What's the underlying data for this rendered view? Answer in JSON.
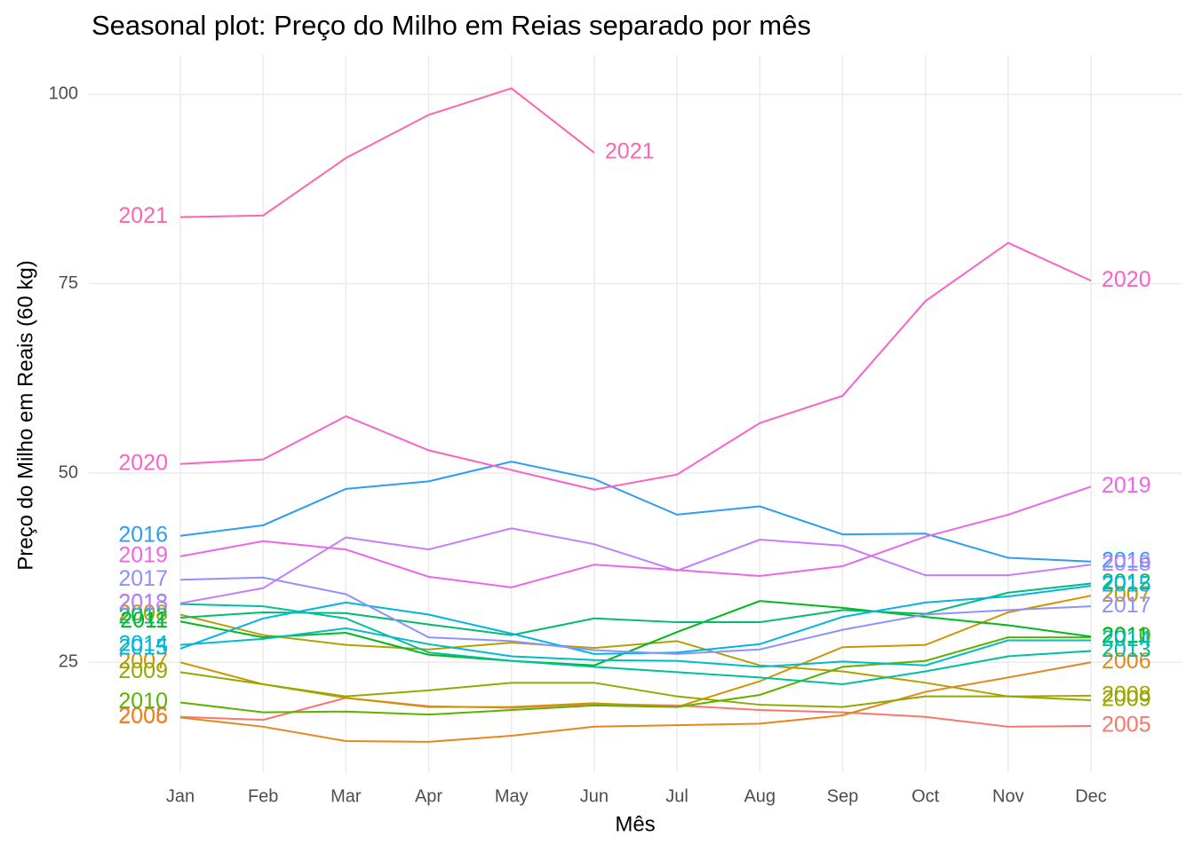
{
  "chart_data": {
    "type": "line",
    "title": "Seasonal plot: Preço do Milho em Reias separado por mês",
    "x_label": "Mês",
    "y_label": "Preço do Milho em Reais (60 kg)",
    "categories": [
      "Jan",
      "Feb",
      "Mar",
      "Apr",
      "May",
      "Jun",
      "Jul",
      "Aug",
      "Sep",
      "Oct",
      "Nov",
      "Dec"
    ],
    "ylim": [
      10.5,
      105.2
    ],
    "yticks": [
      25,
      50,
      75,
      100
    ],
    "grid": true,
    "series": [
      {
        "name": "2005",
        "color": "#F8766D",
        "values": [
          17.8,
          17.4,
          20.3,
          19.2,
          19.0,
          19.5,
          19.3,
          18.7,
          18.4,
          17.8,
          16.5,
          16.6
        ]
      },
      {
        "name": "2006",
        "color": "#E7861B",
        "values": [
          17.7,
          16.5,
          14.6,
          14.5,
          15.3,
          16.5,
          16.7,
          16.9,
          18.0,
          21.1,
          23.0,
          25.0
        ]
      },
      {
        "name": "2007",
        "color": "#D09400",
        "values": [
          25.0,
          22.1,
          20.3,
          19.1,
          19.1,
          19.6,
          19.1,
          22.5,
          27.0,
          27.3,
          31.6,
          33.8
        ]
      },
      {
        "name": "2008",
        "color": "#B2A000",
        "values": [
          31.3,
          28.6,
          27.3,
          26.7,
          27.6,
          26.9,
          27.8,
          24.6,
          23.8,
          22.3,
          20.5,
          20.6
        ]
      },
      {
        "name": "2009",
        "color": "#8FAA00",
        "values": [
          23.7,
          22.1,
          20.5,
          21.3,
          22.3,
          22.3,
          20.5,
          19.4,
          19.1,
          20.5,
          20.5,
          20.0
        ]
      },
      {
        "name": "2010",
        "color": "#5BB300",
        "values": [
          19.7,
          18.4,
          18.5,
          18.1,
          18.7,
          19.3,
          19.1,
          20.7,
          24.4,
          25.2,
          28.3,
          28.3
        ]
      },
      {
        "name": "2011",
        "color": "#00B81F",
        "values": [
          30.4,
          28.3,
          28.9,
          26.0,
          25.2,
          24.6,
          29.0,
          33.1,
          32.2,
          31.0,
          29.9,
          28.4
        ]
      },
      {
        "name": "2012",
        "color": "#00BC6E",
        "values": [
          30.9,
          31.6,
          31.5,
          30.0,
          28.6,
          30.8,
          30.3,
          30.3,
          31.9,
          31.4,
          34.2,
          35.4
        ]
      },
      {
        "name": "2013",
        "color": "#00BFA0",
        "values": [
          32.7,
          32.4,
          30.8,
          26.3,
          25.2,
          24.4,
          23.7,
          23.0,
          22.1,
          23.8,
          25.8,
          26.5
        ]
      },
      {
        "name": "2014",
        "color": "#00BCC8",
        "values": [
          27.3,
          28.1,
          29.5,
          27.4,
          25.8,
          25.3,
          25.2,
          24.4,
          25.1,
          24.6,
          27.9,
          27.9
        ]
      },
      {
        "name": "2015",
        "color": "#00B5E6",
        "values": [
          26.8,
          30.8,
          32.9,
          31.3,
          28.8,
          26.1,
          26.3,
          27.4,
          31.0,
          32.9,
          33.7,
          35.1
        ]
      },
      {
        "name": "2016",
        "color": "#2B9EF3",
        "values": [
          41.7,
          43.1,
          47.9,
          48.9,
          51.5,
          49.2,
          44.5,
          45.6,
          41.9,
          42.0,
          38.8,
          38.3
        ]
      },
      {
        "name": "2017",
        "color": "#8F91FF",
        "values": [
          35.9,
          36.2,
          34.0,
          28.3,
          27.8,
          26.6,
          26.1,
          26.7,
          29.3,
          31.3,
          31.9,
          32.4
        ]
      },
      {
        "name": "2018",
        "color": "#C77CFF",
        "values": [
          32.8,
          34.8,
          41.5,
          39.9,
          42.7,
          40.6,
          37.1,
          41.2,
          40.4,
          36.5,
          36.5,
          37.9
        ]
      },
      {
        "name": "2019",
        "color": "#EE66E6",
        "values": [
          39.0,
          41.0,
          39.9,
          36.3,
          34.9,
          37.9,
          37.2,
          36.4,
          37.7,
          41.6,
          44.5,
          48.2
        ]
      },
      {
        "name": "2020",
        "color": "#FB61C7",
        "values": [
          51.2,
          51.8,
          57.5,
          53.0,
          50.4,
          47.8,
          49.8,
          56.6,
          60.2,
          72.7,
          80.4,
          75.4
        ]
      },
      {
        "name": "2021",
        "color": "#FF65AC",
        "values": [
          83.8,
          84.0,
          91.6,
          97.3,
          100.8,
          92.3,
          null,
          null,
          null,
          null,
          null,
          null
        ]
      }
    ]
  }
}
